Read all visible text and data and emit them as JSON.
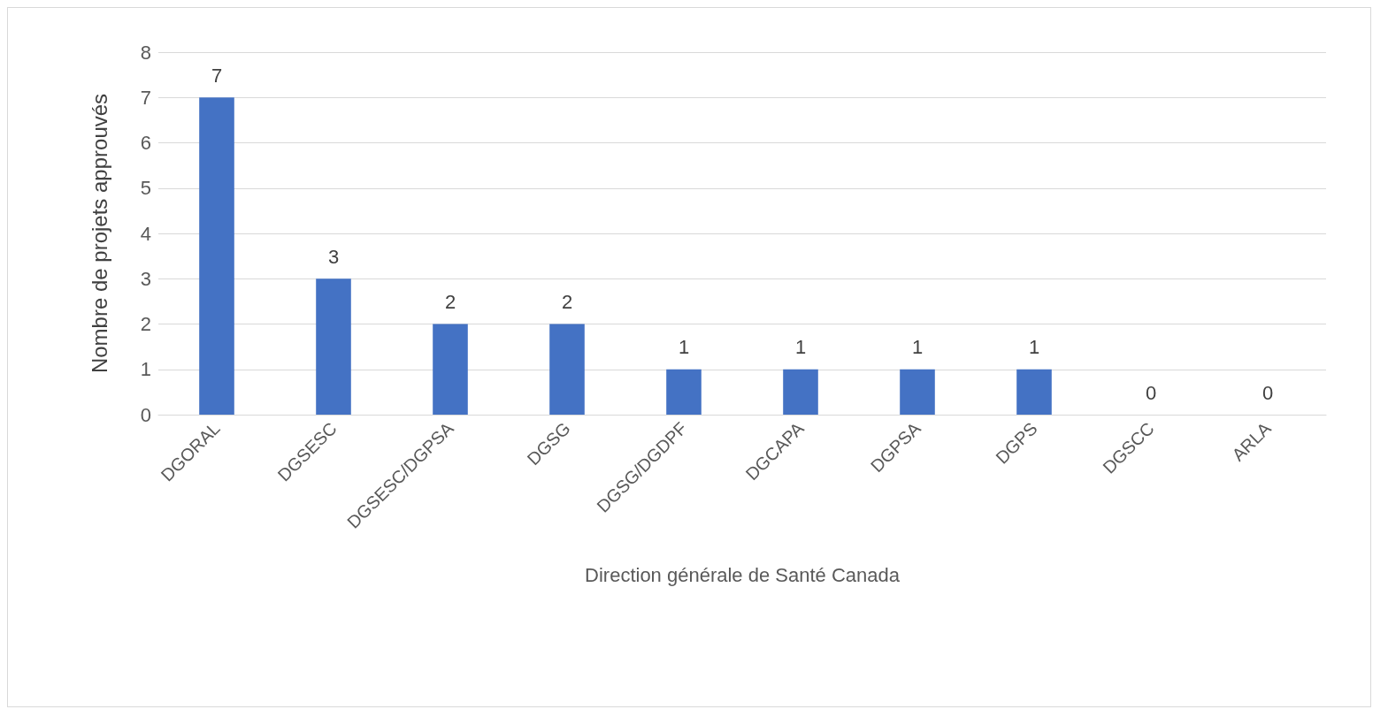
{
  "chart_data": {
    "type": "bar",
    "xlabel": "Direction générale de Santé Canada",
    "ylabel": "Nombre de projets approuvés",
    "categories": [
      "DGORAL",
      "DGSESC",
      "DGSESC/DGPSA",
      "DGSG",
      "DGSG/DGDPF",
      "DGCAPA",
      "DGPSA",
      "DGPS",
      "DGSCC",
      "ARLA"
    ],
    "values": [
      7,
      3,
      2,
      2,
      1,
      1,
      1,
      1,
      0,
      0
    ],
    "color": "#4472c4",
    "ylim": [
      0,
      8
    ],
    "yticks": [
      0,
      1,
      2,
      3,
      4,
      5,
      6,
      7,
      8
    ],
    "grid": "y",
    "data_labels": true
  }
}
